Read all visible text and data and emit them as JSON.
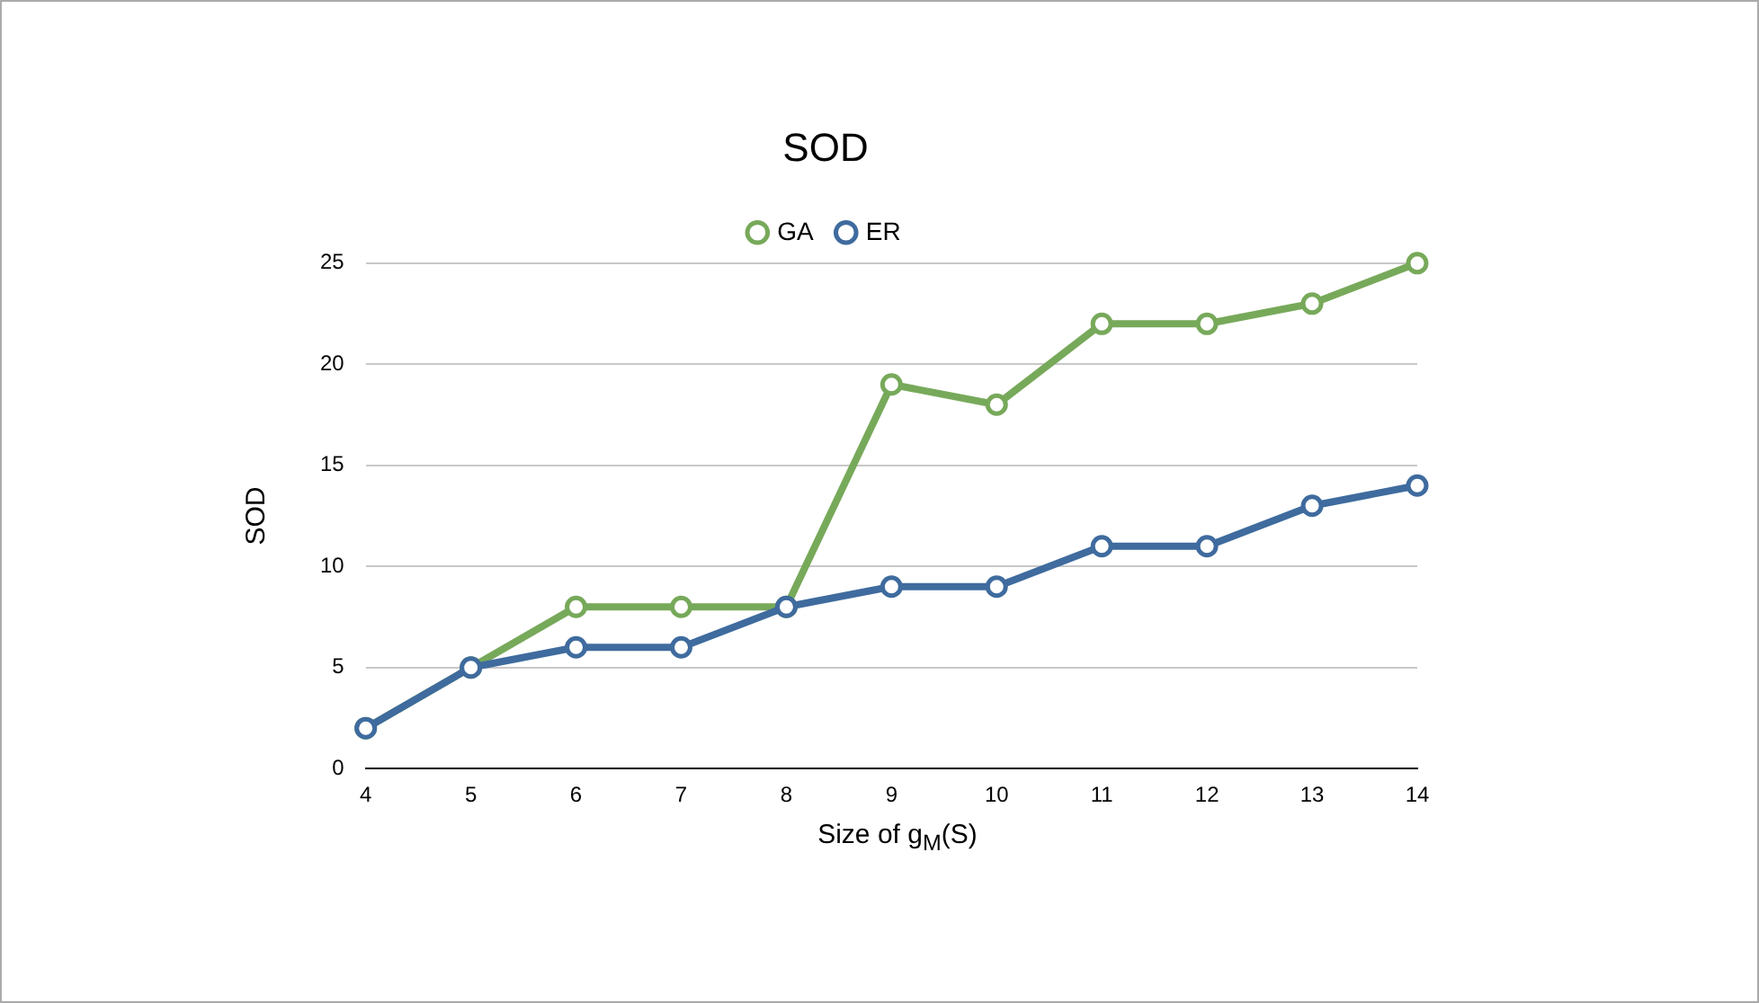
{
  "chart_data": {
    "type": "line",
    "title": "SOD",
    "xlabel": "Size of g$_{M}$(S)",
    "ylabel": "SOD",
    "x": [
      4,
      5,
      6,
      7,
      8,
      9,
      10,
      11,
      12,
      13,
      14
    ],
    "xlim": [
      4,
      14
    ],
    "xticks": [
      4,
      5,
      6,
      7,
      8,
      9,
      10,
      11,
      12,
      13,
      14
    ],
    "ylim": [
      0,
      25
    ],
    "yticks": [
      0,
      5,
      10,
      15,
      20,
      25
    ],
    "grid": "y",
    "legend": "top",
    "marker": "circle",
    "line_style": "solid",
    "series": [
      {
        "name": "GA",
        "color": "#77a95a",
        "values": [
          2,
          5,
          8,
          8,
          8,
          19,
          18,
          22,
          22,
          23,
          25
        ]
      },
      {
        "name": "ER",
        "color": "#3f6b9e",
        "values": [
          2,
          5,
          6,
          6,
          8,
          9,
          9,
          11,
          11,
          13,
          14
        ]
      }
    ]
  }
}
